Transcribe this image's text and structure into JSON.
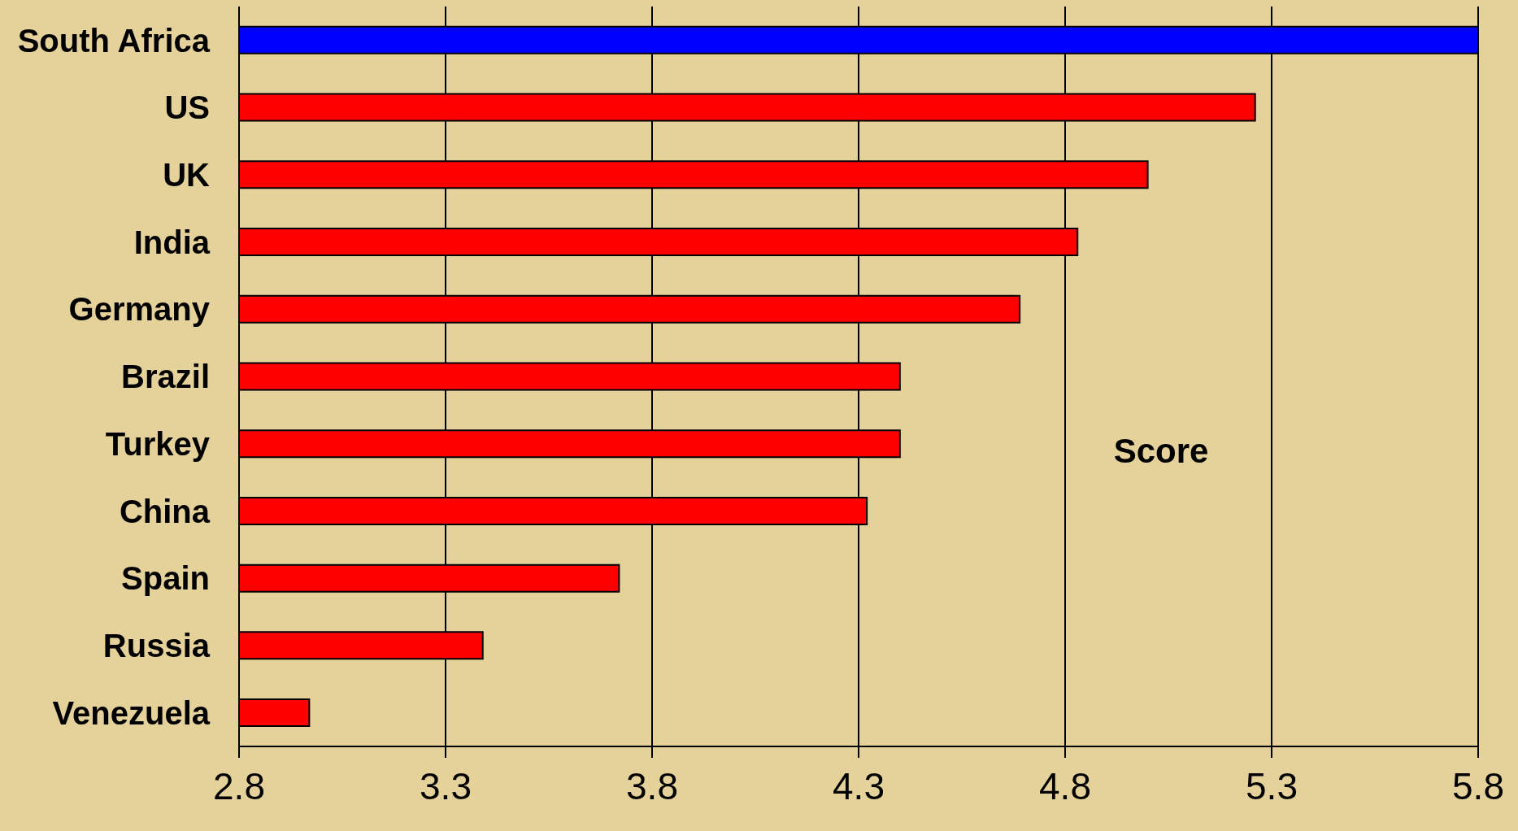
{
  "chart_data": {
    "type": "bar",
    "orientation": "horizontal",
    "xlabel": "Score",
    "categories": [
      "South Africa",
      "US",
      "UK",
      "India",
      "Germany",
      "Brazil",
      "Turkey",
      "China",
      "Spain",
      "Russia",
      "Venezuela"
    ],
    "values": [
      5.8,
      5.26,
      5.0,
      4.83,
      4.69,
      4.4,
      4.4,
      4.32,
      3.72,
      3.39,
      2.97
    ],
    "colors": [
      "#0000ff",
      "#ff0000",
      "#ff0000",
      "#ff0000",
      "#ff0000",
      "#ff0000",
      "#ff0000",
      "#ff0000",
      "#ff0000",
      "#ff0000",
      "#ff0000"
    ],
    "xlim": [
      2.8,
      5.8
    ],
    "xticks": [
      2.8,
      3.3,
      3.8,
      4.3,
      4.8,
      5.3,
      5.8
    ],
    "grid": "x"
  }
}
